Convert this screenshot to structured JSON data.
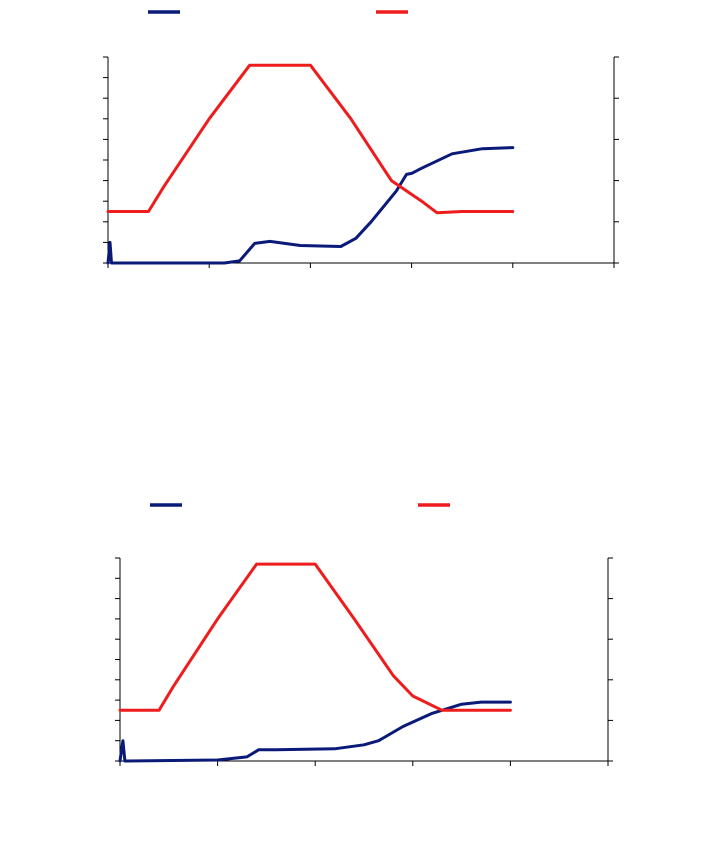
{
  "colors": {
    "navy": "#0a1a78",
    "red": "#ee1c1c"
  },
  "chart_data": [
    {
      "type": "line",
      "title": "",
      "legend": {
        "placement": "top",
        "entries": [
          {
            "color": "#0a1a78"
          },
          {
            "color": "#ee1c1c"
          }
        ]
      },
      "x_range": [
        0,
        5
      ],
      "x_ticks": [
        0,
        1,
        2,
        3,
        4,
        5
      ],
      "y_left_range": [
        0,
        10
      ],
      "y_left_ticks": [
        0,
        1,
        2,
        3,
        4,
        5,
        6,
        7,
        8,
        9,
        10
      ],
      "y_right_range": [
        0,
        5
      ],
      "y_right_ticks": [
        0,
        1,
        2,
        3,
        4,
        5
      ],
      "grid": false,
      "series": [
        {
          "color": "#0a1a78",
          "axis": "left",
          "points": [
            [
              0.0,
              0
            ],
            [
              0.02,
              1.0
            ],
            [
              0.035,
              0
            ],
            [
              1.15,
              0
            ],
            [
              1.3,
              0.1
            ],
            [
              1.45,
              0.95
            ],
            [
              1.6,
              1.05
            ],
            [
              1.9,
              0.85
            ],
            [
              2.3,
              0.8
            ],
            [
              2.45,
              1.2
            ],
            [
              2.6,
              2.0
            ],
            [
              2.85,
              3.5
            ],
            [
              2.95,
              4.3
            ],
            [
              3.0,
              4.35
            ],
            [
              3.1,
              4.6
            ],
            [
              3.4,
              5.3
            ],
            [
              3.7,
              5.55
            ],
            [
              4.0,
              5.6
            ]
          ]
        },
        {
          "color": "#ee1c1c",
          "axis": "right",
          "points": [
            [
              0.0,
              1.25
            ],
            [
              0.4,
              1.25
            ],
            [
              0.55,
              1.85
            ],
            [
              1.0,
              3.5
            ],
            [
              1.4,
              4.8
            ],
            [
              2.0,
              4.8
            ],
            [
              2.4,
              3.5
            ],
            [
              2.8,
              2.0
            ],
            [
              3.1,
              1.5
            ],
            [
              3.25,
              1.22
            ],
            [
              3.5,
              1.25
            ],
            [
              4.0,
              1.25
            ]
          ]
        }
      ]
    },
    {
      "type": "line",
      "title": "",
      "legend": {
        "placement": "top",
        "entries": [
          {
            "color": "#0a1a78"
          },
          {
            "color": "#ee1c1c"
          }
        ]
      },
      "x_range": [
        0,
        5
      ],
      "x_ticks": [
        0,
        1,
        2,
        3,
        4,
        5
      ],
      "y_left_range": [
        0,
        10
      ],
      "y_left_ticks": [
        0,
        1,
        2,
        3,
        4,
        5,
        6,
        7,
        8,
        9,
        10
      ],
      "y_right_range": [
        0,
        5
      ],
      "y_right_ticks": [
        0,
        1,
        2,
        3,
        4,
        5
      ],
      "grid": false,
      "series": [
        {
          "color": "#0a1a78",
          "axis": "left",
          "points": [
            [
              0.0,
              0
            ],
            [
              0.03,
              1.0
            ],
            [
              0.05,
              0
            ],
            [
              1.0,
              0.05
            ],
            [
              1.3,
              0.2
            ],
            [
              1.42,
              0.55
            ],
            [
              1.6,
              0.55
            ],
            [
              2.2,
              0.6
            ],
            [
              2.5,
              0.8
            ],
            [
              2.65,
              1.0
            ],
            [
              2.9,
              1.7
            ],
            [
              3.2,
              2.35
            ],
            [
              3.5,
              2.8
            ],
            [
              3.7,
              2.9
            ],
            [
              4.0,
              2.9
            ]
          ]
        },
        {
          "color": "#ee1c1c",
          "axis": "right",
          "points": [
            [
              0.0,
              1.25
            ],
            [
              0.4,
              1.25
            ],
            [
              0.55,
              1.85
            ],
            [
              1.0,
              3.5
            ],
            [
              1.4,
              4.85
            ],
            [
              2.0,
              4.85
            ],
            [
              2.4,
              3.5
            ],
            [
              2.8,
              2.1
            ],
            [
              3.0,
              1.6
            ],
            [
              3.3,
              1.25
            ],
            [
              3.5,
              1.25
            ],
            [
              4.0,
              1.25
            ]
          ]
        }
      ]
    }
  ]
}
